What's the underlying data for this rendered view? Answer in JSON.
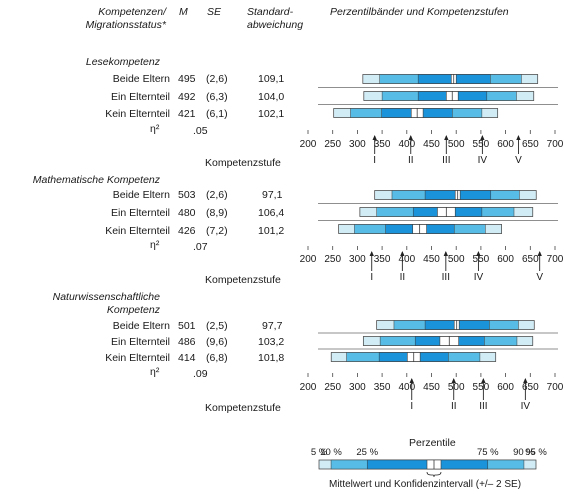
{
  "headers": {
    "group_line1": "Kompetenzen/",
    "group_line2": "Migrationsstatus*",
    "m": "M",
    "se": "SE",
    "sd_line1": "Standard-",
    "sd_line2": "abweichung",
    "chart_title": "Perzentilbänder und Kompetenzstufen"
  },
  "colors": {
    "outer_band": "#d2ecf6",
    "mid_band": "#57bde6",
    "inner_band": "#1b93da",
    "ci_box": "#ffffff",
    "band_stroke": "#3a3a3a"
  },
  "chart_data": [
    {
      "type": "percentile_bands",
      "title": "Lesekompetenz",
      "rows": [
        {
          "label": "Beide Eltern",
          "m": "495",
          "se": "(2,6)",
          "sd": "109,1",
          "p5": 311,
          "p10": 345,
          "p25": 423,
          "mean": 495,
          "ci": [
            490,
            500
          ],
          "p75": 569,
          "p90": 632,
          "p95": 665
        },
        {
          "label": "Ein Elternteil",
          "m": "492",
          "se": "(6,3)",
          "sd": "104,0",
          "p5": 313,
          "p10": 350,
          "p25": 423,
          "mean": 492,
          "ci": [
            480,
            504
          ],
          "p75": 562,
          "p90": 622,
          "p95": 657
        },
        {
          "label": "Kein Elternteil",
          "m": "421",
          "se": "(6,1)",
          "sd": "102,1",
          "p5": 252,
          "p10": 286,
          "p25": 349,
          "mean": 421,
          "ci": [
            409,
            433
          ],
          "p75": 492,
          "p90": 552,
          "p95": 584
        }
      ],
      "eta_label": "η²",
      "eta_value": ".05",
      "axis_ticks": [
        "200",
        "250",
        "300",
        "350",
        "400",
        "450",
        "500",
        "550",
        "600",
        "650",
        "700"
      ],
      "xlim": [
        200,
        700
      ],
      "levels_label": "Kompetenzstufe",
      "levels": [
        {
          "name": "I",
          "value": 335
        },
        {
          "name": "II",
          "value": 408
        },
        {
          "name": "III",
          "value": 480
        },
        {
          "name": "IV",
          "value": 553
        },
        {
          "name": "V",
          "value": 626
        }
      ]
    },
    {
      "type": "percentile_bands",
      "title": "Mathematische Kompetenz",
      "rows": [
        {
          "label": "Beide Eltern",
          "m": "503",
          "se": "(2,6)",
          "sd": "97,1",
          "p5": 335,
          "p10": 370,
          "p25": 437,
          "mean": 503,
          "ci": [
            498,
            508
          ],
          "p75": 570,
          "p90": 628,
          "p95": 662
        },
        {
          "label": "Ein Elternteil",
          "m": "480",
          "se": "(8,9)",
          "sd": "106,4",
          "p5": 305,
          "p10": 339,
          "p25": 413,
          "mean": 480,
          "ci": [
            462,
            498
          ],
          "p75": 552,
          "p90": 617,
          "p95": 655
        },
        {
          "label": "Kein Elternteil",
          "m": "426",
          "se": "(7,2)",
          "sd": "101,2",
          "p5": 262,
          "p10": 294,
          "p25": 357,
          "mean": 426,
          "ci": [
            412,
            440
          ],
          "p75": 496,
          "p90": 559,
          "p95": 592
        }
      ],
      "eta_label": "η²",
      "eta_value": ".07",
      "axis_ticks": [
        "200",
        "250",
        "300",
        "350",
        "400",
        "450",
        "500",
        "550",
        "600",
        "650",
        "700"
      ],
      "xlim": [
        200,
        700
      ],
      "levels_label": "Kompetenzstufe",
      "levels": [
        {
          "name": "I",
          "value": 329
        },
        {
          "name": "II",
          "value": 391
        },
        {
          "name": "III",
          "value": 479
        },
        {
          "name": "IV",
          "value": 545
        },
        {
          "name": "V",
          "value": 669
        }
      ]
    },
    {
      "type": "percentile_bands",
      "title_line1": "Naturwissenschaftliche",
      "title_line2": "Kompetenz",
      "rows": [
        {
          "label": "Beide Eltern",
          "m": "501",
          "se": "(2,5)",
          "sd": "97,7",
          "p5": 339,
          "p10": 374,
          "p25": 437,
          "mean": 501,
          "ci": [
            496,
            506
          ],
          "p75": 567,
          "p90": 626,
          "p95": 658
        },
        {
          "label": "Ein Elternteil",
          "m": "486",
          "se": "(9,6)",
          "sd": "103,2",
          "p5": 312,
          "p10": 346,
          "p25": 417,
          "mean": 486,
          "ci": [
            467,
            505
          ],
          "p75": 557,
          "p90": 623,
          "p95": 655
        },
        {
          "label": "Kein Elternteil",
          "m": "414",
          "se": "(6,8)",
          "sd": "101,8",
          "p5": 247,
          "p10": 278,
          "p25": 344,
          "mean": 414,
          "ci": [
            401,
            427
          ],
          "p75": 484,
          "p90": 548,
          "p95": 580
        }
      ],
      "eta_label": "η²",
      "eta_value": ".09",
      "axis_ticks": [
        "200",
        "250",
        "300",
        "350",
        "400",
        "450",
        "500",
        "550",
        "600",
        "650",
        "700"
      ],
      "xlim": [
        200,
        700
      ],
      "levels_label": "Kompetenzstufe",
      "levels": [
        {
          "name": "I",
          "value": 410
        },
        {
          "name": "II",
          "value": 495
        },
        {
          "name": "III",
          "value": 555
        },
        {
          "name": "IV",
          "value": 640
        }
      ]
    }
  ],
  "legend": {
    "title": "Perzentile",
    "labels": [
      "5 %",
      "10 %",
      "25 %",
      "75 %",
      "90 %",
      "95 %"
    ],
    "caption": "Mittelwert und Konfidenzintervall (+/– 2 SE)"
  }
}
